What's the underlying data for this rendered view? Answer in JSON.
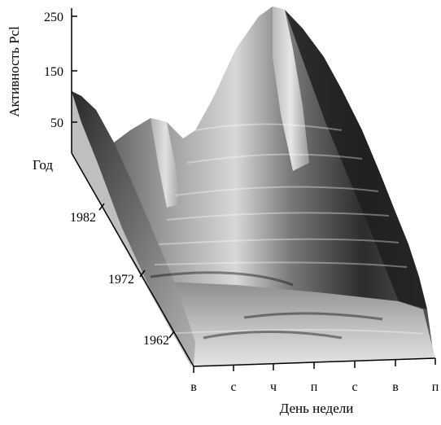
{
  "chart_data": {
    "type": "surface-3d",
    "zlabel": "Активность Pcl",
    "z_ticks": [
      "250",
      "150",
      "50"
    ],
    "year_label": "Год",
    "year_ticks": [
      "1982",
      "1972",
      "1962"
    ],
    "xlabel": "День недели",
    "x_ticks": [
      "в",
      "с",
      "ч",
      "п",
      "с",
      "в",
      "п"
    ],
    "shading": "grayscale"
  }
}
